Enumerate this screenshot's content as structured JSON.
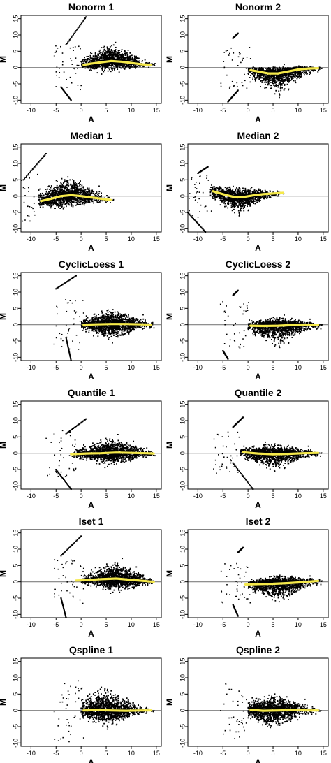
{
  "colors": {
    "points": "#000000",
    "loess": "#f5e94a",
    "zero_line": "#7f7f7f",
    "frame": "#000000"
  },
  "chart_data": [
    {
      "type": "scatter",
      "title": "Nonorm 1",
      "xlabel": "A",
      "ylabel": "M",
      "xlim": [
        -12,
        16
      ],
      "ylim": [
        -11,
        16
      ],
      "xticks": [
        -10,
        -5,
        0,
        5,
        10,
        15
      ],
      "yticks": [
        -10,
        -5,
        0,
        5,
        10,
        15
      ],
      "cloud": {
        "amin": 0.5,
        "amax": 14.5,
        "peak": 6,
        "up": 4.0,
        "down": 2.2
      },
      "loess": [
        [
          0.5,
          0.8
        ],
        [
          2,
          1.2
        ],
        [
          4,
          1.6
        ],
        [
          6,
          2.0
        ],
        [
          8,
          1.8
        ],
        [
          10,
          1.4
        ],
        [
          12,
          1.0
        ],
        [
          14,
          0.8
        ]
      ],
      "diagonals": [
        [
          -3,
          7,
          1,
          15.5
        ],
        [
          -4,
          -6,
          -2,
          -10
        ]
      ]
    },
    {
      "type": "scatter",
      "title": "Nonorm 2",
      "xlabel": "A",
      "ylabel": "M",
      "xlim": [
        -12,
        16
      ],
      "ylim": [
        -11,
        16
      ],
      "xticks": [
        -10,
        -5,
        0,
        5,
        10,
        15
      ],
      "yticks": [
        -10,
        -5,
        0,
        5,
        10,
        15
      ],
      "cloud": {
        "amin": 0.5,
        "amax": 14.5,
        "peak": 6,
        "up": 1.5,
        "down": 4.5
      },
      "loess": [
        [
          0.5,
          -0.8
        ],
        [
          2,
          -1.2
        ],
        [
          4,
          -1.8
        ],
        [
          6,
          -1.8
        ],
        [
          8,
          -1.2
        ],
        [
          10,
          -0.6
        ],
        [
          12,
          -0.3
        ],
        [
          14,
          -0.2
        ]
      ],
      "diagonals": [
        [
          -3,
          9,
          -2,
          10.5
        ],
        [
          -4,
          -10.5,
          -2,
          -7
        ]
      ]
    },
    {
      "type": "scatter",
      "title": "Median 1",
      "xlabel": "A",
      "ylabel": "M",
      "xlim": [
        -12,
        16
      ],
      "ylim": [
        -11,
        16
      ],
      "xticks": [
        -10,
        -5,
        0,
        5,
        10,
        15
      ],
      "yticks": [
        -10,
        -5,
        0,
        5,
        10,
        15
      ],
      "cloud": {
        "amin": -8,
        "amax": 6.5,
        "peak": -3,
        "up": 4.5,
        "down": 3.0
      },
      "loess": [
        [
          -8,
          -1.5
        ],
        [
          -6,
          -0.8
        ],
        [
          -4,
          0
        ],
        [
          -2,
          0.3
        ],
        [
          0,
          0
        ],
        [
          2,
          -0.4
        ],
        [
          4,
          -0.8
        ],
        [
          6,
          -1.2
        ]
      ],
      "diagonals": [
        [
          -11.5,
          5,
          -7,
          13
        ]
      ]
    },
    {
      "type": "scatter",
      "title": "Median 2",
      "xlabel": "A",
      "ylabel": "M",
      "xlim": [
        -12,
        16
      ],
      "ylim": [
        -11,
        16
      ],
      "xticks": [
        -10,
        -5,
        0,
        5,
        10,
        15
      ],
      "yticks": [
        -10,
        -5,
        0,
        5,
        10,
        15
      ],
      "cloud": {
        "amin": -7,
        "amax": 7,
        "peak": -2,
        "up": 2.5,
        "down": 3.5
      },
      "loess": [
        [
          -7,
          1.5
        ],
        [
          -5,
          0.6
        ],
        [
          -3,
          -0.2
        ],
        [
          -1,
          -0.3
        ],
        [
          1,
          0.2
        ],
        [
          3,
          0.6
        ],
        [
          5,
          0.8
        ],
        [
          7,
          1.0
        ]
      ],
      "diagonals": [
        [
          -10,
          7,
          -8,
          9
        ],
        [
          -12,
          -5,
          -8.5,
          -11
        ]
      ]
    },
    {
      "type": "scatter",
      "title": "CyclicLoess 1",
      "xlabel": "A",
      "ylabel": "M",
      "xlim": [
        -12,
        16
      ],
      "ylim": [
        -11,
        16
      ],
      "xticks": [
        -10,
        -5,
        0,
        5,
        10,
        15
      ],
      "yticks": [
        -10,
        -5,
        0,
        5,
        10,
        15
      ],
      "cloud": {
        "amin": 0.5,
        "amax": 14.5,
        "peak": 6,
        "up": 3.5,
        "down": 3.5
      },
      "loess": [
        [
          0.5,
          0
        ],
        [
          3,
          0.1
        ],
        [
          6,
          0.2
        ],
        [
          9,
          0.2
        ],
        [
          12,
          0.1
        ],
        [
          14,
          0
        ]
      ],
      "diagonals": [
        [
          -5,
          11,
          -1,
          15
        ],
        [
          -3,
          -4,
          -2,
          -11
        ]
      ]
    },
    {
      "type": "scatter",
      "title": "CyclicLoess 2",
      "xlabel": "A",
      "ylabel": "M",
      "xlim": [
        -12,
        16
      ],
      "ylim": [
        -11,
        16
      ],
      "xticks": [
        -10,
        -5,
        0,
        5,
        10,
        15
      ],
      "yticks": [
        -10,
        -5,
        0,
        5,
        10,
        15
      ],
      "cloud": {
        "amin": 0.5,
        "amax": 14.5,
        "peak": 6,
        "up": 2.0,
        "down": 4.5
      },
      "loess": [
        [
          0.5,
          -0.3
        ],
        [
          3,
          -0.4
        ],
        [
          6,
          -0.3
        ],
        [
          9,
          -0.1
        ],
        [
          12,
          0
        ],
        [
          14,
          0
        ]
      ],
      "diagonals": [
        [
          -3,
          9,
          -2,
          10.5
        ],
        [
          -5,
          -8,
          -4,
          -10.5
        ]
      ]
    },
    {
      "type": "scatter",
      "title": "Quantile 1",
      "xlabel": "A",
      "ylabel": "M",
      "xlim": [
        -12,
        16
      ],
      "ylim": [
        -11,
        16
      ],
      "xticks": [
        -10,
        -5,
        0,
        5,
        10,
        15
      ],
      "yticks": [
        -10,
        -5,
        0,
        5,
        10,
        15
      ],
      "cloud": {
        "amin": -1,
        "amax": 14.5,
        "peak": 6,
        "up": 3.5,
        "down": 3.0
      },
      "loess": [
        [
          -2,
          -0.3
        ],
        [
          1,
          -0.1
        ],
        [
          4,
          0
        ],
        [
          7,
          0.2
        ],
        [
          10,
          0.1
        ],
        [
          13,
          0
        ],
        [
          14.5,
          -0.1
        ]
      ],
      "diagonals": [
        [
          -3,
          6,
          1,
          10.5
        ],
        [
          -5,
          -5,
          -2,
          -11
        ]
      ]
    },
    {
      "type": "scatter",
      "title": "Quantile 2",
      "xlabel": "A",
      "ylabel": "M",
      "xlim": [
        -12,
        16
      ],
      "ylim": [
        -11,
        16
      ],
      "xticks": [
        -10,
        -5,
        0,
        5,
        10,
        15
      ],
      "yticks": [
        -10,
        -5,
        0,
        5,
        10,
        15
      ],
      "cloud": {
        "amin": -1,
        "amax": 14.5,
        "peak": 5,
        "up": 2.5,
        "down": 3.5
      },
      "loess": [
        [
          -1,
          0.3
        ],
        [
          2,
          -0.1
        ],
        [
          5,
          -0.3
        ],
        [
          8,
          -0.2
        ],
        [
          11,
          0
        ],
        [
          14,
          0.1
        ]
      ],
      "diagonals": [
        [
          -3,
          8,
          -1,
          11
        ],
        [
          -3,
          -3,
          1,
          -11
        ]
      ]
    },
    {
      "type": "scatter",
      "title": "Iset 1",
      "xlabel": "A",
      "ylabel": "M",
      "xlim": [
        -12,
        16
      ],
      "ylim": [
        -11,
        16
      ],
      "xticks": [
        -10,
        -5,
        0,
        5,
        10,
        15
      ],
      "yticks": [
        -10,
        -5,
        0,
        5,
        10,
        15
      ],
      "cloud": {
        "amin": 0.5,
        "amax": 14.5,
        "peak": 7,
        "up": 4.0,
        "down": 3.0
      },
      "loess": [
        [
          -1,
          0.4
        ],
        [
          1,
          0.5
        ],
        [
          4,
          0.8
        ],
        [
          7,
          1.0
        ],
        [
          10,
          0.6
        ],
        [
          13,
          0.2
        ],
        [
          14.5,
          0
        ]
      ],
      "diagonals": [
        [
          -4,
          8,
          0,
          14
        ],
        [
          -4,
          -5,
          -3,
          -11
        ]
      ]
    },
    {
      "type": "scatter",
      "title": "Iset 2",
      "xlabel": "A",
      "ylabel": "M",
      "xlim": [
        -12,
        16
      ],
      "ylim": [
        -11,
        16
      ],
      "xticks": [
        -10,
        -5,
        0,
        5,
        10,
        15
      ],
      "yticks": [
        -10,
        -5,
        0,
        5,
        10,
        15
      ],
      "cloud": {
        "amin": 0.5,
        "amax": 14.5,
        "peak": 6,
        "up": 2.0,
        "down": 4.0
      },
      "loess": [
        [
          -0.5,
          -0.8
        ],
        [
          2,
          -0.7
        ],
        [
          5,
          -0.6
        ],
        [
          8,
          -0.4
        ],
        [
          11,
          -0.1
        ],
        [
          14,
          0.3
        ]
      ],
      "diagonals": [
        [
          -2,
          9,
          -1,
          10.5
        ],
        [
          -3,
          -7,
          -2,
          -10.5
        ]
      ]
    },
    {
      "type": "scatter",
      "title": "Qspline 1",
      "xlabel": "A",
      "ylabel": "M",
      "xlim": [
        -12,
        16
      ],
      "ylim": [
        -11,
        16
      ],
      "xticks": [
        -10,
        -5,
        0,
        5,
        10,
        15
      ],
      "yticks": [
        -10,
        -5,
        0,
        5,
        10,
        15
      ],
      "cloud": {
        "amin": 0.5,
        "amax": 14.5,
        "peak": 5,
        "up": 5.5,
        "down": 3.5
      },
      "loess": [
        [
          0.5,
          0
        ],
        [
          3,
          0.1
        ],
        [
          6,
          0
        ],
        [
          9,
          -0.1
        ],
        [
          12,
          0
        ],
        [
          14,
          0
        ]
      ],
      "diagonals": []
    },
    {
      "type": "scatter",
      "title": "Qspline 2",
      "xlabel": "A",
      "ylabel": "M",
      "xlim": [
        -12,
        16
      ],
      "ylim": [
        -11,
        16
      ],
      "xticks": [
        -10,
        -5,
        0,
        5,
        10,
        15
      ],
      "yticks": [
        -10,
        -5,
        0,
        5,
        10,
        15
      ],
      "cloud": {
        "amin": 0.5,
        "amax": 14.5,
        "peak": 5,
        "up": 4.0,
        "down": 4.0
      },
      "loess": [
        [
          0.5,
          0.2
        ],
        [
          3,
          -0.1
        ],
        [
          6,
          0
        ],
        [
          9,
          0.1
        ],
        [
          12,
          0
        ],
        [
          14,
          0
        ]
      ],
      "diagonals": []
    }
  ]
}
